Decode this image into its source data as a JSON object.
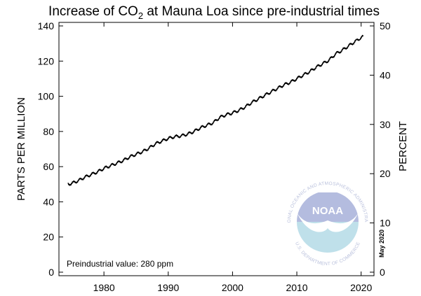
{
  "chart_data": {
    "type": "line",
    "title_main": "Increase of CO",
    "title_sub": "2",
    "title_rest": " at Mauna Loa since pre-industrial times",
    "xlabel": "",
    "ylabel": "PARTS PER MILLION",
    "ylabel_right": "PERCENT",
    "xlim": [
      1973,
      2022
    ],
    "ylim": [
      -2,
      142
    ],
    "right_axis_factor": 2.8,
    "x_ticks": [
      1980,
      1990,
      2000,
      2010,
      2020
    ],
    "y_ticks": [
      0,
      20,
      40,
      60,
      80,
      100,
      120,
      140
    ],
    "y_ticks_right": [
      0,
      10,
      20,
      30,
      40,
      50
    ],
    "annotation": "Preindustrial value: 280 ppm",
    "date_stamp": "May 2020",
    "grid": false,
    "legend": "none",
    "line_color": "#000000",
    "series": [
      {
        "x": [
          1974.4,
          1975,
          1976,
          1977,
          1978,
          1979,
          1980,
          1981,
          1982,
          1983,
          1984,
          1985,
          1986,
          1987,
          1988,
          1989,
          1990,
          1991,
          1992,
          1993,
          1994,
          1995,
          1996,
          1997,
          1998,
          1999,
          2000,
          2001,
          2002,
          2003,
          2004,
          2005,
          2006,
          2007,
          2008,
          2009,
          2010,
          2011,
          2012,
          2013,
          2014,
          2015,
          2016,
          2017,
          2018,
          2019,
          2020.3
        ],
        "values": [
          50,
          50.5,
          52,
          54,
          55.5,
          57,
          59,
          60.5,
          62,
          63.5,
          65.5,
          67,
          68.5,
          70.5,
          73,
          74.5,
          76,
          77,
          77.5,
          78.5,
          80,
          82,
          83.5,
          85,
          88,
          89.5,
          90.5,
          92,
          94,
          96.5,
          98.5,
          100.5,
          102.5,
          104.5,
          106.5,
          108,
          110,
          112,
          114,
          116.5,
          118.5,
          120.5,
          124,
          126,
          128.5,
          131,
          134
        ]
      }
    ]
  },
  "logo": {
    "wordmark": "NOAA",
    "ring_top": "NATIONAL OCEANIC AND ATMOSPHERIC ADMINISTRATION",
    "ring_bottom": "U.S. DEPARTMENT OF COMMERCE"
  }
}
